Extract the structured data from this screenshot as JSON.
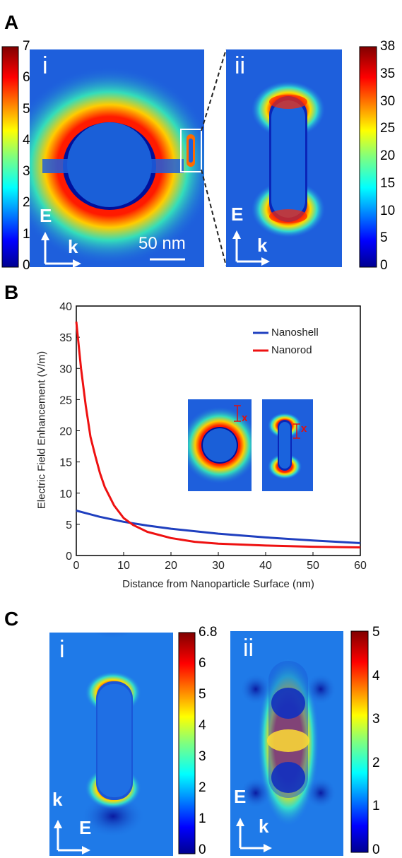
{
  "panel_letters": {
    "A": "A",
    "B": "B",
    "C": "C"
  },
  "panel_A": {
    "i": {
      "label": "i",
      "colorbar_ticks": [
        "7",
        "6",
        "5",
        "4",
        "3",
        "2",
        "1",
        "0"
      ],
      "axes_labels": {
        "E": "E",
        "k": "k"
      },
      "scale_bar": "50 nm"
    },
    "ii": {
      "label": "ii",
      "colorbar_ticks": [
        "38",
        "35",
        "30",
        "25",
        "20",
        "15",
        "10",
        "5",
        "0"
      ],
      "axes_labels": {
        "E": "E",
        "k": "k"
      }
    }
  },
  "chart_data": {
    "type": "line",
    "xlabel": "Distance from Nanoparticle Surface (nm)",
    "ylabel": "Electric Field Enhancement (V/m)",
    "xlim": [
      0,
      60
    ],
    "ylim": [
      0,
      40
    ],
    "xticks": [
      "0",
      "10",
      "20",
      "30",
      "40",
      "50",
      "60"
    ],
    "yticks": [
      "0",
      "5",
      "10",
      "15",
      "20",
      "25",
      "30",
      "35",
      "40"
    ],
    "legend_position": "top-right",
    "series": [
      {
        "name": "Nanoshell",
        "color": "#1f3fbf",
        "x": [
          0,
          5,
          10,
          15,
          20,
          30,
          40,
          50,
          60
        ],
        "y": [
          7.2,
          6.2,
          5.4,
          4.8,
          4.3,
          3.5,
          2.9,
          2.4,
          2.0
        ]
      },
      {
        "name": "Nanorod",
        "color": "#ee1111",
        "x": [
          0,
          1,
          2,
          3,
          4,
          5,
          6,
          8,
          10,
          12,
          15,
          20,
          25,
          30,
          40,
          50,
          60
        ],
        "y": [
          37.5,
          30,
          24,
          19,
          16,
          13.2,
          11,
          8,
          6,
          4.9,
          3.8,
          2.8,
          2.2,
          1.9,
          1.6,
          1.4,
          1.3
        ]
      }
    ],
    "inset_markers": [
      "x",
      "x"
    ]
  },
  "panel_C": {
    "i": {
      "label": "i",
      "colorbar_ticks": [
        "6.8",
        "6",
        "5",
        "4",
        "3",
        "2",
        "1",
        "0"
      ],
      "axes_labels": {
        "k": "k",
        "E": "E"
      }
    },
    "ii": {
      "label": "ii",
      "colorbar_ticks": [
        "5",
        "4",
        "3",
        "2",
        "1",
        "0"
      ],
      "axes_labels": {
        "E": "E",
        "k": "k"
      }
    }
  },
  "colors": {
    "field_background": "#1f64e0",
    "hot_red": "#c40000",
    "jet_low": "#00008f",
    "jet_high": "#800000"
  }
}
